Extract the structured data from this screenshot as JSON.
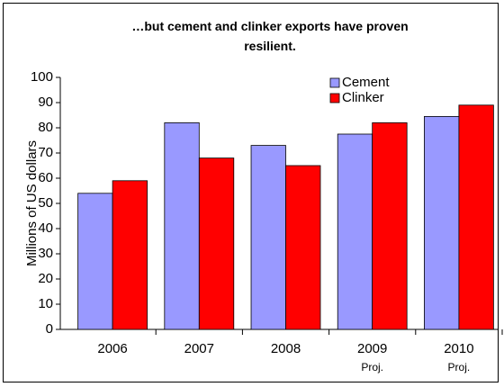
{
  "chart_data": {
    "type": "bar",
    "title": "…but cement and clinker exports have proven resilient.",
    "y_label": "Millions of US dollars",
    "categories": [
      "2006",
      "2007",
      "2008",
      "2009",
      "2010"
    ],
    "category_notes": [
      null,
      null,
      null,
      "Proj.",
      "Proj."
    ],
    "series": [
      {
        "name": "Cement",
        "color": "#9999ff",
        "values": [
          54,
          82,
          73,
          77.5,
          84.5
        ]
      },
      {
        "name": "Clinker",
        "color": "#ff0000",
        "values": [
          59,
          68,
          65,
          82,
          89
        ]
      }
    ],
    "ylim": [
      0,
      100
    ],
    "yticks": [
      0,
      10,
      20,
      30,
      40,
      50,
      60,
      70,
      80,
      90,
      100
    ],
    "grid": false,
    "legend": "top-right"
  }
}
